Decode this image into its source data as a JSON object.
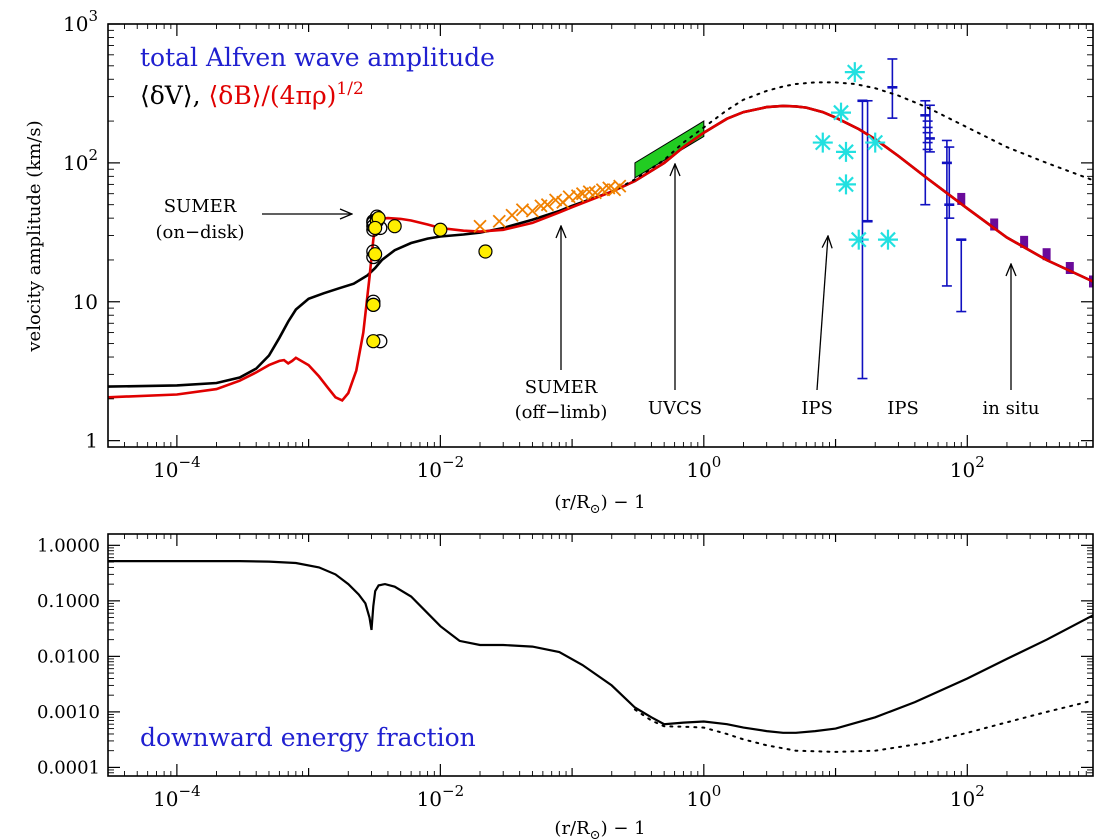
{
  "chart_data": [
    {
      "type": "line",
      "title_line1": "total Alfven wave amplitude",
      "title_line2_black": "⟨δV⟩, ",
      "title_line2_red": "⟨δB⟩/(4πρ)",
      "title_line2_red_sup": "1/2",
      "xlabel": "(r/R",
      "xlabel_sub": "⊙",
      "xlabel_tail": ") − 1",
      "ylabel": "velocity amplitude (km/s)",
      "xscale": "log",
      "yscale": "log",
      "xlim": [
        3e-05,
        900
      ],
      "ylim": [
        0.9,
        1000
      ],
      "x_ticks": [
        {
          "v": 0.0001,
          "b": "10",
          "e": "−4"
        },
        {
          "v": 0.01,
          "b": "10",
          "e": "−2"
        },
        {
          "v": 1,
          "b": "10",
          "e": "0"
        },
        {
          "v": 100,
          "b": "10",
          "e": "2"
        }
      ],
      "y_ticks": [
        {
          "v": 1,
          "b": "1",
          "e": ""
        },
        {
          "v": 10,
          "b": "10",
          "e": ""
        },
        {
          "v": 100,
          "b": "10",
          "e": "2"
        },
        {
          "v": 1000,
          "b": "10",
          "e": "3"
        }
      ],
      "colors": {
        "dv": "#000000",
        "db": "#e00000",
        "title": "#2020d0",
        "sumer_off": "#f08000",
        "uvcs": "#22cc22",
        "ips_star": "#22e0e0",
        "ips_bar": "#1010c0",
        "insitu": "#6a0a9a"
      },
      "series": [
        {
          "key": "dv",
          "style": "solid",
          "color": "#000000",
          "x": [
            3e-05,
            0.0001,
            0.0002,
            0.0003,
            0.0004,
            0.0005,
            0.0006,
            0.0007,
            0.0008,
            0.001,
            0.0013,
            0.0017,
            0.0022,
            0.0028,
            0.0032,
            0.0036,
            0.0045,
            0.006,
            0.008,
            0.01,
            0.015,
            0.02,
            0.03,
            0.05,
            0.08,
            0.1,
            0.2,
            0.3,
            0.5,
            0.7,
            1,
            1.5,
            2,
            3,
            4,
            5,
            6,
            8,
            10,
            15,
            20,
            30,
            50,
            100,
            200,
            400,
            900
          ],
          "y": [
            2.45,
            2.5,
            2.6,
            2.85,
            3.3,
            4.1,
            5.5,
            7.2,
            8.8,
            10.5,
            11.5,
            12.5,
            13.5,
            15.5,
            17.5,
            20,
            23.5,
            26.5,
            28.5,
            29.5,
            30.5,
            31.5,
            34,
            39,
            45,
            49,
            62,
            74,
            100,
            130,
            165,
            208,
            232,
            252,
            257,
            255,
            250,
            232,
            212,
            175,
            148,
            112,
            77,
            47,
            29,
            20,
            14
          ]
        },
        {
          "key": "db",
          "style": "solid",
          "color": "#e00000",
          "x": [
            3e-05,
            0.0001,
            0.0002,
            0.0003,
            0.0004,
            0.0005,
            0.0006,
            0.00065,
            0.0007,
            0.00075,
            0.0008,
            0.001,
            0.0012,
            0.0014,
            0.0016,
            0.0018,
            0.002,
            0.0023,
            0.0026,
            0.0029,
            0.0031,
            0.0032,
            0.0033,
            0.0035,
            0.004,
            0.005,
            0.006,
            0.008,
            0.01,
            0.015,
            0.02,
            0.03,
            0.05,
            0.08,
            0.1,
            0.2,
            0.3,
            0.5,
            0.7,
            1,
            1.5,
            2,
            3,
            4,
            5,
            6,
            8,
            10,
            15,
            20,
            30,
            50,
            100,
            200,
            400,
            900
          ],
          "y": [
            2.05,
            2.15,
            2.35,
            2.7,
            3.1,
            3.5,
            3.75,
            3.8,
            3.6,
            3.75,
            3.95,
            3.5,
            2.9,
            2.4,
            2.05,
            1.95,
            2.2,
            3.2,
            6,
            15,
            28,
            35,
            38,
            39.5,
            40,
            39.5,
            38.5,
            36,
            34,
            32.5,
            32,
            33,
            37,
            44,
            48,
            62,
            74,
            100,
            130,
            165,
            208,
            232,
            252,
            257,
            255,
            250,
            232,
            212,
            175,
            148,
            112,
            77,
            47,
            29,
            20,
            14
          ]
        },
        {
          "key": "dv_dot",
          "style": "dotted",
          "color": "#000000",
          "x": [
            0.2,
            0.3,
            0.5,
            0.7,
            1,
            1.5,
            2,
            3,
            4,
            5,
            7,
            10,
            14,
            20,
            30,
            50,
            100,
            200,
            400,
            900
          ],
          "y": [
            62,
            76,
            105,
            140,
            180,
            240,
            285,
            330,
            355,
            370,
            380,
            380,
            370,
            345,
            305,
            250,
            180,
            130,
            100,
            75
          ]
        }
      ],
      "sumer_on": {
        "x": [
          0.0031,
          0.0031,
          0.0031,
          0.0031,
          0.0031,
          0.0031,
          0.0031,
          0.0031,
          0.0033,
          0.0033,
          0.0035,
          0.0035
        ],
        "y": [
          9.5,
          10,
          21,
          23,
          33,
          35,
          37,
          38,
          39,
          41,
          5.2,
          34
        ]
      },
      "sumer_yellow": {
        "x": [
          0.0031,
          0.0032,
          0.0033,
          0.0031,
          0.0034,
          0.0045,
          0.01,
          0.022,
          0.0032
        ],
        "y": [
          9.5,
          22,
          38,
          5.2,
          40,
          35,
          33,
          23,
          34
        ]
      },
      "sumer_off": {
        "x": [
          0.02,
          0.028,
          0.035,
          0.042,
          0.05,
          0.058,
          0.065,
          0.075,
          0.085,
          0.095,
          0.11,
          0.12,
          0.135,
          0.15,
          0.17,
          0.19,
          0.21,
          0.23
        ],
        "y": [
          35,
          38,
          42,
          46,
          45,
          49,
          50,
          54,
          52,
          57,
          58,
          60,
          62,
          61,
          64,
          66,
          64,
          68
        ]
      },
      "uvcs": {
        "x": [
          0.3,
          1
        ],
        "y_low": [
          78,
          155
        ],
        "y_high": [
          100,
          200
        ]
      },
      "ips_stars": {
        "x": [
          8,
          12,
          14,
          11,
          12,
          15,
          20,
          25
        ],
        "y": [
          140,
          70,
          450,
          230,
          120,
          28,
          140,
          28
        ]
      },
      "ips_bars": [
        {
          "x": 16,
          "y": 280,
          "lo": 2.8,
          "hi": 280
        },
        {
          "x": 17.5,
          "y": 38,
          "lo": 38,
          "hi": 280
        },
        {
          "x": 27,
          "y": 350,
          "lo": 210,
          "hi": 560
        },
        {
          "x": 48,
          "y": 220,
          "lo": 50,
          "hi": 280
        },
        {
          "x": 52,
          "y": 150,
          "lo": 120,
          "hi": 260
        },
        {
          "x": 70,
          "y": 100,
          "lo": 13,
          "hi": 145
        },
        {
          "x": 73,
          "y": 50,
          "lo": 40,
          "hi": 130
        },
        {
          "x": 90,
          "y": 28,
          "lo": 8.5,
          "hi": 28
        }
      ],
      "insitu": {
        "x": [
          90,
          160,
          270,
          400,
          600,
          900
        ],
        "y": [
          55,
          36,
          27,
          22,
          17.5,
          14
        ]
      },
      "annotations": [
        {
          "key": "sumer_on",
          "lines": [
            "SUMER",
            "(on−disk)"
          ]
        },
        {
          "key": "sumer_off",
          "lines": [
            "SUMER",
            "(off−limb)"
          ]
        },
        {
          "key": "uvcs",
          "lines": [
            "UVCS"
          ]
        },
        {
          "key": "ips1",
          "lines": [
            "IPS"
          ]
        },
        {
          "key": "ips2",
          "lines": [
            "IPS"
          ]
        },
        {
          "key": "insitu",
          "lines": [
            "in situ"
          ]
        }
      ]
    },
    {
      "type": "line",
      "label": "downward energy fraction",
      "xlabel": "(r/R",
      "xlabel_sub": "⊙",
      "xlabel_tail": ") − 1",
      "xscale": "log",
      "yscale": "log",
      "xlim": [
        3e-05,
        900
      ],
      "ylim": [
        7e-05,
        1.6
      ],
      "x_ticks": [
        {
          "v": 0.0001,
          "b": "10",
          "e": "−4"
        },
        {
          "v": 0.01,
          "b": "10",
          "e": "−2"
        },
        {
          "v": 1,
          "b": "10",
          "e": "0"
        },
        {
          "v": 100,
          "b": "10",
          "e": "2"
        }
      ],
      "y_ticks": [
        {
          "v": 1,
          "label": "1.0000"
        },
        {
          "v": 0.1,
          "label": "0.1000"
        },
        {
          "v": 0.01,
          "label": "0.0100"
        },
        {
          "v": 0.001,
          "label": "0.0010"
        },
        {
          "v": 0.0001,
          "label": "0.0001"
        }
      ],
      "series": [
        {
          "key": "frac",
          "style": "solid",
          "x": [
            3e-05,
            0.0001,
            0.0003,
            0.0005,
            0.0008,
            0.0012,
            0.0016,
            0.002,
            0.0024,
            0.0027,
            0.0029,
            0.003,
            0.0031,
            0.0032,
            0.0034,
            0.0038,
            0.0045,
            0.006,
            0.008,
            0.01,
            0.014,
            0.02,
            0.03,
            0.05,
            0.08,
            0.12,
            0.2,
            0.3,
            0.4,
            0.5,
            0.7,
            1,
            1.5,
            2,
            3,
            4,
            5,
            7,
            10,
            20,
            40,
            100,
            200,
            400,
            900
          ],
          "y": [
            0.52,
            0.52,
            0.52,
            0.51,
            0.48,
            0.4,
            0.3,
            0.2,
            0.13,
            0.09,
            0.05,
            0.03,
            0.08,
            0.15,
            0.19,
            0.2,
            0.18,
            0.12,
            0.06,
            0.035,
            0.019,
            0.016,
            0.016,
            0.015,
            0.012,
            0.007,
            0.003,
            0.0012,
            0.0008,
            0.0006,
            0.00064,
            0.00067,
            0.0006,
            0.00052,
            0.00045,
            0.00042,
            0.00042,
            0.00045,
            0.0005,
            0.0008,
            0.0015,
            0.004,
            0.009,
            0.02,
            0.055
          ]
        },
        {
          "key": "frac_dot",
          "style": "dotted",
          "x": [
            0.3,
            0.4,
            0.5,
            0.7,
            1,
            1.5,
            2,
            3,
            5,
            10,
            20,
            50,
            100,
            200,
            400,
            900
          ],
          "y": [
            0.0011,
            0.0007,
            0.00055,
            0.00054,
            0.00052,
            0.0004,
            0.00032,
            0.00025,
            0.0002,
            0.00019,
            0.0002,
            0.00028,
            0.00042,
            0.00065,
            0.001,
            0.0016
          ]
        }
      ]
    }
  ]
}
